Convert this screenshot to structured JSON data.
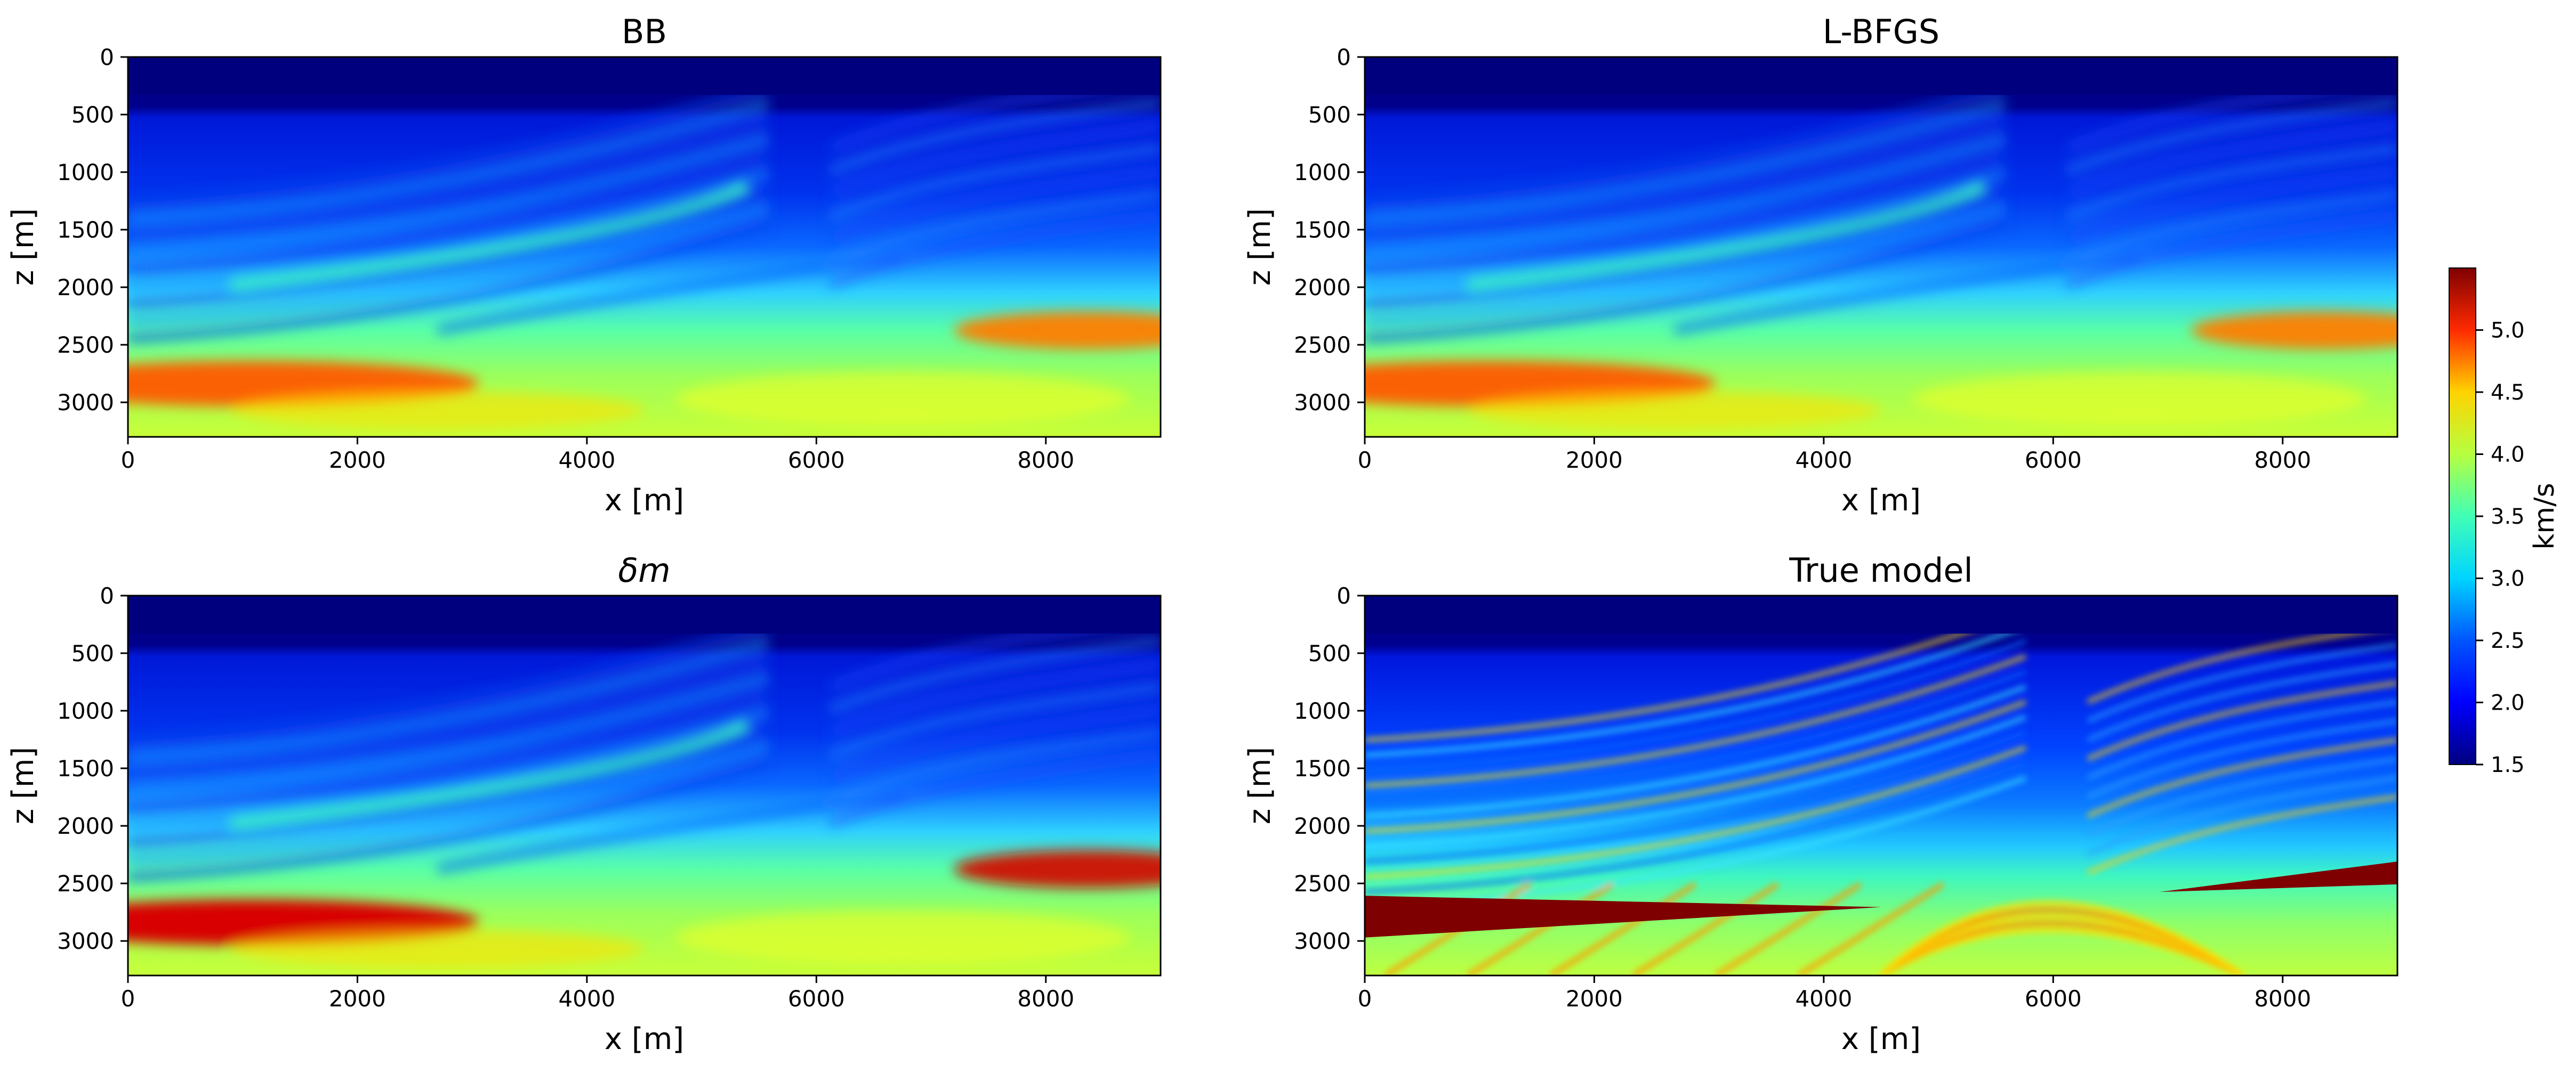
{
  "figure": {
    "colorbar": {
      "label": "km/s",
      "ticks": [
        1.5,
        2.0,
        2.5,
        3.0,
        3.5,
        4.0,
        4.5,
        5.0
      ],
      "range": [
        1.5,
        5.5
      ],
      "colormap": "jet"
    }
  },
  "chart_data": [
    {
      "type": "heatmap",
      "title": "BB",
      "xlabel": "x [m]",
      "ylabel": "z [m]",
      "xlim": [
        0,
        9000
      ],
      "ylim": [
        3300,
        0
      ],
      "xticks": [
        0,
        2000,
        4000,
        6000,
        8000
      ],
      "yticks": [
        0,
        500,
        1000,
        1500,
        2000,
        2500,
        3000
      ],
      "colormap": "jet",
      "value_range": [
        1.5,
        5.5
      ],
      "value_unit": "km/s"
    },
    {
      "type": "heatmap",
      "title": "L-BFGS",
      "xlabel": "x [m]",
      "ylabel": "z [m]",
      "xlim": [
        0,
        9000
      ],
      "ylim": [
        3300,
        0
      ],
      "xticks": [
        0,
        2000,
        4000,
        6000,
        8000
      ],
      "yticks": [
        0,
        500,
        1000,
        1500,
        2000,
        2500,
        3000
      ],
      "colormap": "jet",
      "value_range": [
        1.5,
        5.5
      ],
      "value_unit": "km/s"
    },
    {
      "type": "heatmap",
      "title": "δm",
      "xlabel": "x [m]",
      "ylabel": "z [m]",
      "xlim": [
        0,
        9000
      ],
      "ylim": [
        3300,
        0
      ],
      "xticks": [
        0,
        2000,
        4000,
        6000,
        8000
      ],
      "yticks": [
        0,
        500,
        1000,
        1500,
        2000,
        2500,
        3000
      ],
      "colormap": "jet",
      "value_range": [
        1.5,
        5.5
      ],
      "value_unit": "km/s"
    },
    {
      "type": "heatmap",
      "title": "True model",
      "xlabel": "x [m]",
      "ylabel": "z [m]",
      "xlim": [
        0,
        9000
      ],
      "ylim": [
        3300,
        0
      ],
      "xticks": [
        0,
        2000,
        4000,
        6000,
        8000
      ],
      "yticks": [
        0,
        500,
        1000,
        1500,
        2000,
        2500,
        3000
      ],
      "colormap": "jet",
      "value_range": [
        1.5,
        5.5
      ],
      "value_unit": "km/s"
    }
  ]
}
